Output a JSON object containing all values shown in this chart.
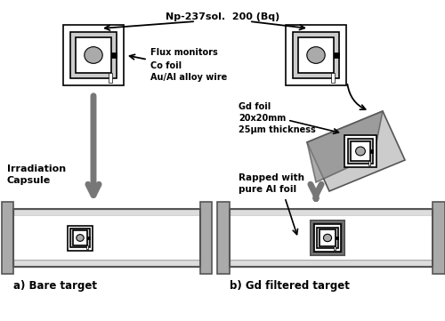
{
  "bg_color": "#ffffff",
  "black": "#000000",
  "white": "#ffffff",
  "dark_gray": "#555555",
  "medium_gray": "#888888",
  "light_gray": "#aaaaaa",
  "lighter_gray": "#cccccc",
  "very_light_gray": "#e8e8e8",
  "capsule_border": "#aaaaaa",
  "capsule_fill": "#dddddd",
  "arrow_gray": "#777777",
  "gd_dark": "#888888",
  "gd_light": "#cccccc",
  "top_label": "Np-237sol.  200 (Bq)",
  "flux_labels": [
    "Flux monitors",
    "Co foil",
    "Au/Al alloy wire"
  ],
  "gd_labels": [
    "Gd foil",
    "20x20mm",
    "25μm thickness"
  ],
  "irrad_label": [
    "Irradiation",
    "Capsule"
  ],
  "rapped_label": [
    "Rapped with",
    "pure Al foil"
  ],
  "bottom_a": "a) Bare target",
  "bottom_b": "b) Gd filtered target"
}
